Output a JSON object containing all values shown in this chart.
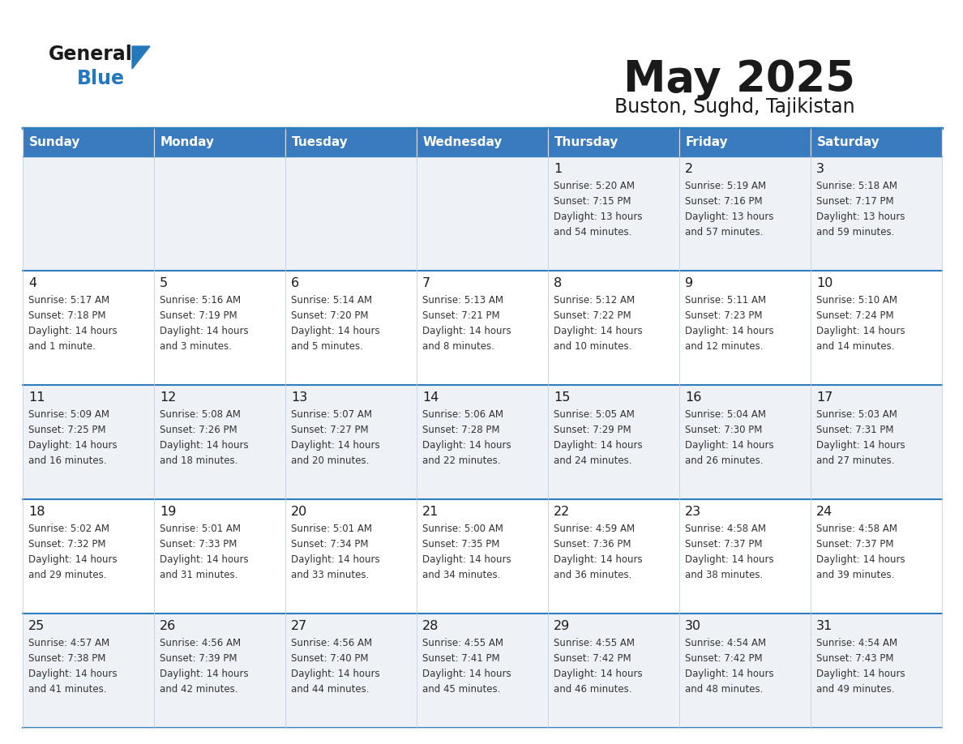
{
  "title": "May 2025",
  "subtitle": "Buston, Sughd, Tajikistan",
  "header_bg": "#3a7abf",
  "header_text_color": "#ffffff",
  "text_color": "#333333",
  "day_number_color": "#1a1a1a",
  "days_of_week": [
    "Sunday",
    "Monday",
    "Tuesday",
    "Wednesday",
    "Thursday",
    "Friday",
    "Saturday"
  ],
  "weeks": [
    [
      {
        "day": "",
        "lines": []
      },
      {
        "day": "",
        "lines": []
      },
      {
        "day": "",
        "lines": []
      },
      {
        "day": "",
        "lines": []
      },
      {
        "day": "1",
        "lines": [
          "Sunrise: 5:20 AM",
          "Sunset: 7:15 PM",
          "Daylight: 13 hours",
          "and 54 minutes."
        ]
      },
      {
        "day": "2",
        "lines": [
          "Sunrise: 5:19 AM",
          "Sunset: 7:16 PM",
          "Daylight: 13 hours",
          "and 57 minutes."
        ]
      },
      {
        "day": "3",
        "lines": [
          "Sunrise: 5:18 AM",
          "Sunset: 7:17 PM",
          "Daylight: 13 hours",
          "and 59 minutes."
        ]
      }
    ],
    [
      {
        "day": "4",
        "lines": [
          "Sunrise: 5:17 AM",
          "Sunset: 7:18 PM",
          "Daylight: 14 hours",
          "and 1 minute."
        ]
      },
      {
        "day": "5",
        "lines": [
          "Sunrise: 5:16 AM",
          "Sunset: 7:19 PM",
          "Daylight: 14 hours",
          "and 3 minutes."
        ]
      },
      {
        "day": "6",
        "lines": [
          "Sunrise: 5:14 AM",
          "Sunset: 7:20 PM",
          "Daylight: 14 hours",
          "and 5 minutes."
        ]
      },
      {
        "day": "7",
        "lines": [
          "Sunrise: 5:13 AM",
          "Sunset: 7:21 PM",
          "Daylight: 14 hours",
          "and 8 minutes."
        ]
      },
      {
        "day": "8",
        "lines": [
          "Sunrise: 5:12 AM",
          "Sunset: 7:22 PM",
          "Daylight: 14 hours",
          "and 10 minutes."
        ]
      },
      {
        "day": "9",
        "lines": [
          "Sunrise: 5:11 AM",
          "Sunset: 7:23 PM",
          "Daylight: 14 hours",
          "and 12 minutes."
        ]
      },
      {
        "day": "10",
        "lines": [
          "Sunrise: 5:10 AM",
          "Sunset: 7:24 PM",
          "Daylight: 14 hours",
          "and 14 minutes."
        ]
      }
    ],
    [
      {
        "day": "11",
        "lines": [
          "Sunrise: 5:09 AM",
          "Sunset: 7:25 PM",
          "Daylight: 14 hours",
          "and 16 minutes."
        ]
      },
      {
        "day": "12",
        "lines": [
          "Sunrise: 5:08 AM",
          "Sunset: 7:26 PM",
          "Daylight: 14 hours",
          "and 18 minutes."
        ]
      },
      {
        "day": "13",
        "lines": [
          "Sunrise: 5:07 AM",
          "Sunset: 7:27 PM",
          "Daylight: 14 hours",
          "and 20 minutes."
        ]
      },
      {
        "day": "14",
        "lines": [
          "Sunrise: 5:06 AM",
          "Sunset: 7:28 PM",
          "Daylight: 14 hours",
          "and 22 minutes."
        ]
      },
      {
        "day": "15",
        "lines": [
          "Sunrise: 5:05 AM",
          "Sunset: 7:29 PM",
          "Daylight: 14 hours",
          "and 24 minutes."
        ]
      },
      {
        "day": "16",
        "lines": [
          "Sunrise: 5:04 AM",
          "Sunset: 7:30 PM",
          "Daylight: 14 hours",
          "and 26 minutes."
        ]
      },
      {
        "day": "17",
        "lines": [
          "Sunrise: 5:03 AM",
          "Sunset: 7:31 PM",
          "Daylight: 14 hours",
          "and 27 minutes."
        ]
      }
    ],
    [
      {
        "day": "18",
        "lines": [
          "Sunrise: 5:02 AM",
          "Sunset: 7:32 PM",
          "Daylight: 14 hours",
          "and 29 minutes."
        ]
      },
      {
        "day": "19",
        "lines": [
          "Sunrise: 5:01 AM",
          "Sunset: 7:33 PM",
          "Daylight: 14 hours",
          "and 31 minutes."
        ]
      },
      {
        "day": "20",
        "lines": [
          "Sunrise: 5:01 AM",
          "Sunset: 7:34 PM",
          "Daylight: 14 hours",
          "and 33 minutes."
        ]
      },
      {
        "day": "21",
        "lines": [
          "Sunrise: 5:00 AM",
          "Sunset: 7:35 PM",
          "Daylight: 14 hours",
          "and 34 minutes."
        ]
      },
      {
        "day": "22",
        "lines": [
          "Sunrise: 4:59 AM",
          "Sunset: 7:36 PM",
          "Daylight: 14 hours",
          "and 36 minutes."
        ]
      },
      {
        "day": "23",
        "lines": [
          "Sunrise: 4:58 AM",
          "Sunset: 7:37 PM",
          "Daylight: 14 hours",
          "and 38 minutes."
        ]
      },
      {
        "day": "24",
        "lines": [
          "Sunrise: 4:58 AM",
          "Sunset: 7:37 PM",
          "Daylight: 14 hours",
          "and 39 minutes."
        ]
      }
    ],
    [
      {
        "day": "25",
        "lines": [
          "Sunrise: 4:57 AM",
          "Sunset: 7:38 PM",
          "Daylight: 14 hours",
          "and 41 minutes."
        ]
      },
      {
        "day": "26",
        "lines": [
          "Sunrise: 4:56 AM",
          "Sunset: 7:39 PM",
          "Daylight: 14 hours",
          "and 42 minutes."
        ]
      },
      {
        "day": "27",
        "lines": [
          "Sunrise: 4:56 AM",
          "Sunset: 7:40 PM",
          "Daylight: 14 hours",
          "and 44 minutes."
        ]
      },
      {
        "day": "28",
        "lines": [
          "Sunrise: 4:55 AM",
          "Sunset: 7:41 PM",
          "Daylight: 14 hours",
          "and 45 minutes."
        ]
      },
      {
        "day": "29",
        "lines": [
          "Sunrise: 4:55 AM",
          "Sunset: 7:42 PM",
          "Daylight: 14 hours",
          "and 46 minutes."
        ]
      },
      {
        "day": "30",
        "lines": [
          "Sunrise: 4:54 AM",
          "Sunset: 7:42 PM",
          "Daylight: 14 hours",
          "and 48 minutes."
        ]
      },
      {
        "day": "31",
        "lines": [
          "Sunrise: 4:54 AM",
          "Sunset: 7:43 PM",
          "Daylight: 14 hours",
          "and 49 minutes."
        ]
      }
    ]
  ],
  "logo_general_color": "#1a1a1a",
  "logo_blue_color": "#2479bd",
  "border_color": "#c8d4e0",
  "row_sep_color": "#2e7dbf",
  "row_bg_light": "#eef2f7",
  "row_bg_white": "#ffffff"
}
